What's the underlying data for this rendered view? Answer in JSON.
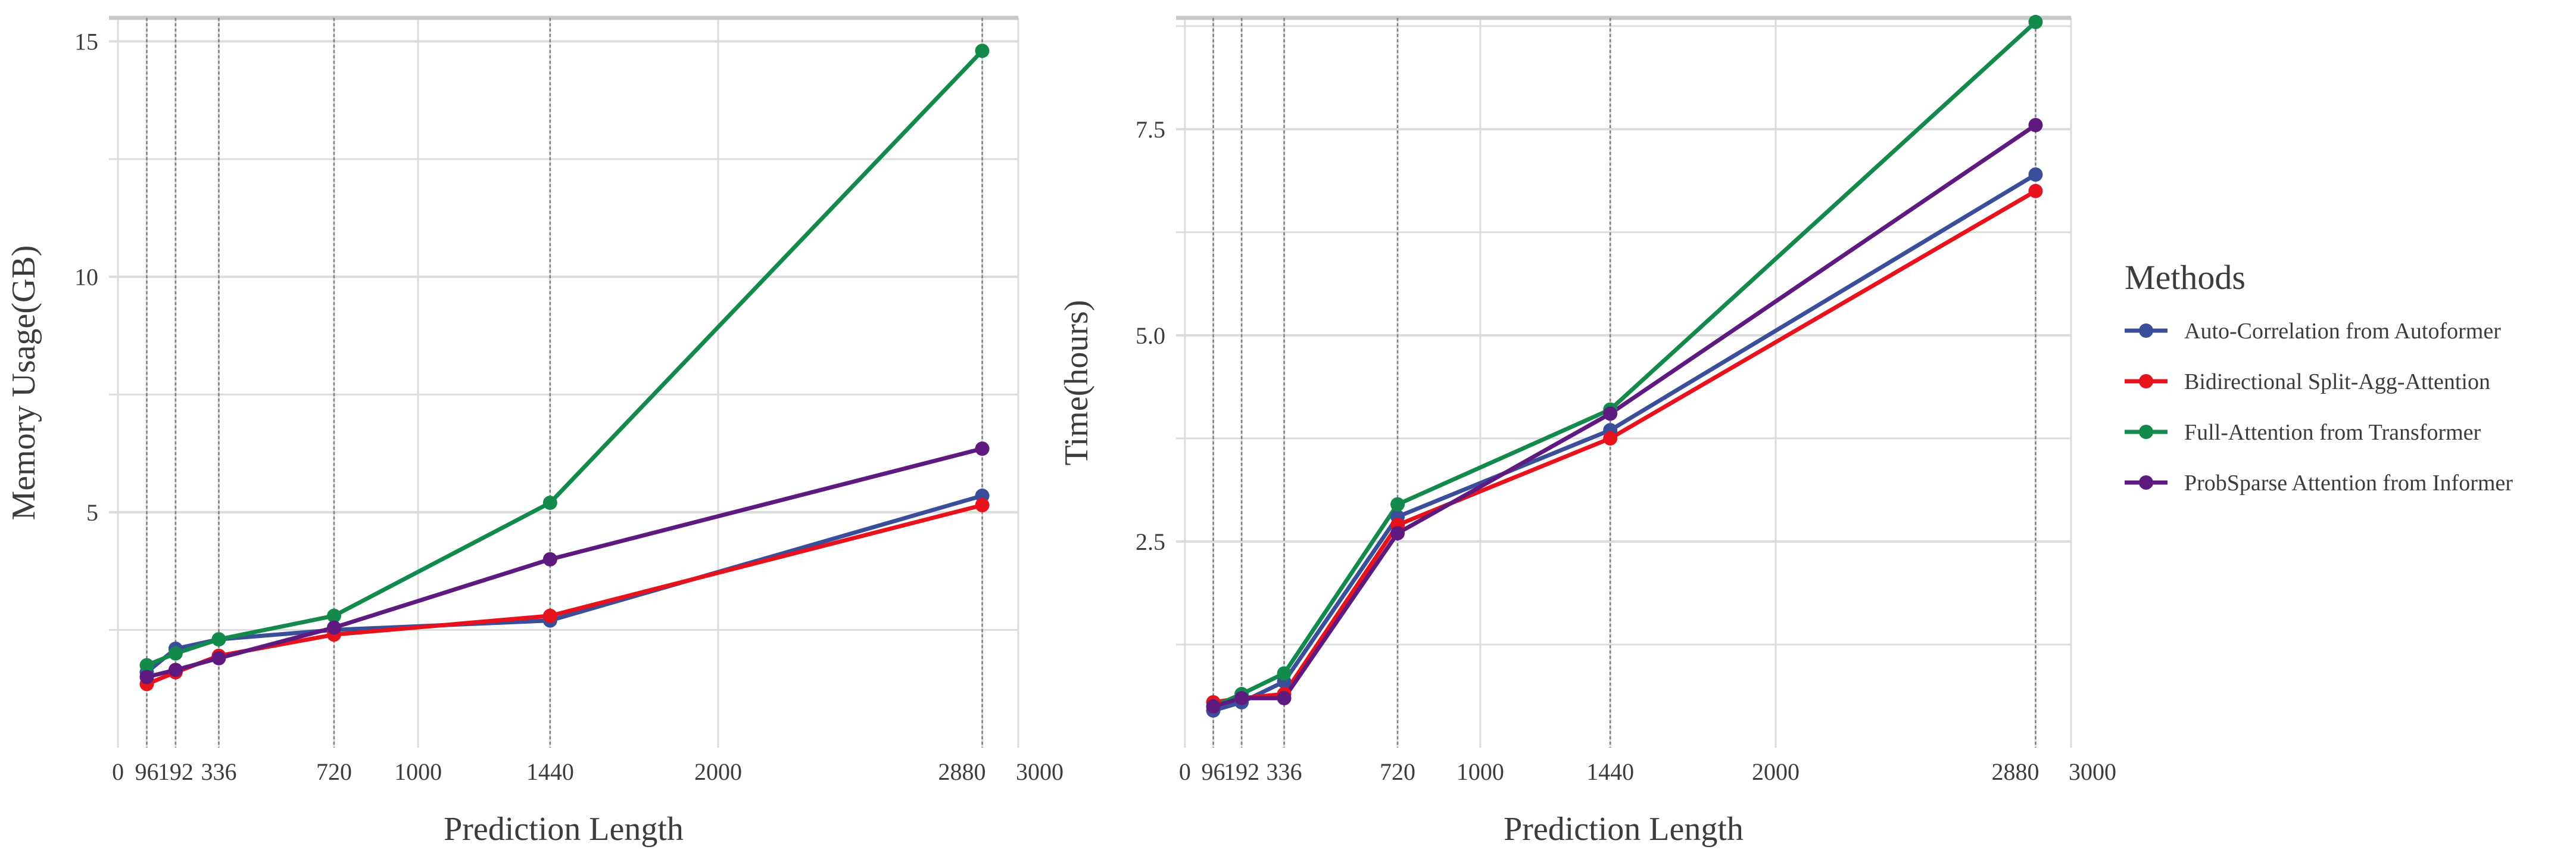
{
  "colors": {
    "auto_correlation": "#3b4e9a",
    "bidirectional": "#e8121d",
    "full_attention": "#138a4c",
    "probsparse": "#5e1a7e",
    "grid": "#dcdcdc",
    "axis_top": "#c8c8c8",
    "vline": "#7f7f7f",
    "text": "#3c3c3c"
  },
  "legend": {
    "title": "Methods",
    "items": [
      {
        "label": "Auto-Correlation from Autoformer",
        "color": "#3b4e9a"
      },
      {
        "label": "Bidirectional Split-Agg-Attention",
        "color": "#e8121d"
      },
      {
        "label": "Full-Attention from Transformer",
        "color": "#138a4c"
      },
      {
        "label": "ProbSparse Attention from Informer",
        "color": "#5e1a7e"
      }
    ]
  },
  "chart_data": [
    {
      "type": "line",
      "title": "",
      "xlabel": "Prediction Length",
      "ylabel": "Memory Usage(GB)",
      "xlim": [
        -30,
        3000
      ],
      "ylim": [
        0,
        15.5
      ],
      "xticks": [
        0,
        96,
        192,
        336,
        720,
        1000,
        1440,
        2000,
        2880,
        3000
      ],
      "yticks": [
        5,
        10,
        15
      ],
      "vlines": [
        96,
        192,
        336,
        720,
        1440,
        2880
      ],
      "x": [
        96,
        192,
        336,
        720,
        1440,
        2880
      ],
      "series": [
        {
          "name": "Auto-Correlation from Autoformer",
          "values": [
            1.6,
            2.1,
            2.3,
            2.5,
            2.7,
            5.35
          ]
        },
        {
          "name": "Bidirectional Split-Agg-Attention",
          "values": [
            1.35,
            1.6,
            1.95,
            2.4,
            2.8,
            5.15
          ]
        },
        {
          "name": "Full-Attention from Transformer",
          "values": [
            1.75,
            2.0,
            2.3,
            2.8,
            5.2,
            14.8
          ]
        },
        {
          "name": "ProbSparse Attention from Informer",
          "values": [
            1.5,
            1.65,
            1.9,
            2.55,
            4.0,
            6.35
          ]
        }
      ]
    },
    {
      "type": "line",
      "title": "",
      "xlabel": "Prediction Length",
      "ylabel": "Time(hours)",
      "xlim": [
        -30,
        3000
      ],
      "ylim": [
        0,
        8.85
      ],
      "xticks": [
        0,
        96,
        192,
        336,
        720,
        1000,
        1440,
        2000,
        2880,
        3000
      ],
      "yticks": [
        2.5,
        5.0,
        7.5
      ],
      "ytick_labels": [
        "2.5",
        "5.0",
        "7.5"
      ],
      "vlines": [
        96,
        192,
        336,
        720,
        1440,
        2880
      ],
      "x": [
        96,
        192,
        336,
        720,
        1440,
        2880
      ],
      "series": [
        {
          "name": "Auto-Correlation from Autoformer",
          "values": [
            0.45,
            0.55,
            0.8,
            2.8,
            3.85,
            6.95
          ]
        },
        {
          "name": "Bidirectional Split-Agg-Attention",
          "values": [
            0.55,
            0.6,
            0.65,
            2.7,
            3.75,
            6.75
          ]
        },
        {
          "name": "Full-Attention from Transformer",
          "values": [
            0.5,
            0.65,
            0.9,
            2.95,
            4.1,
            8.8
          ]
        },
        {
          "name": "ProbSparse Attention from Informer",
          "values": [
            0.5,
            0.6,
            0.6,
            2.6,
            4.05,
            7.55
          ]
        }
      ]
    }
  ]
}
